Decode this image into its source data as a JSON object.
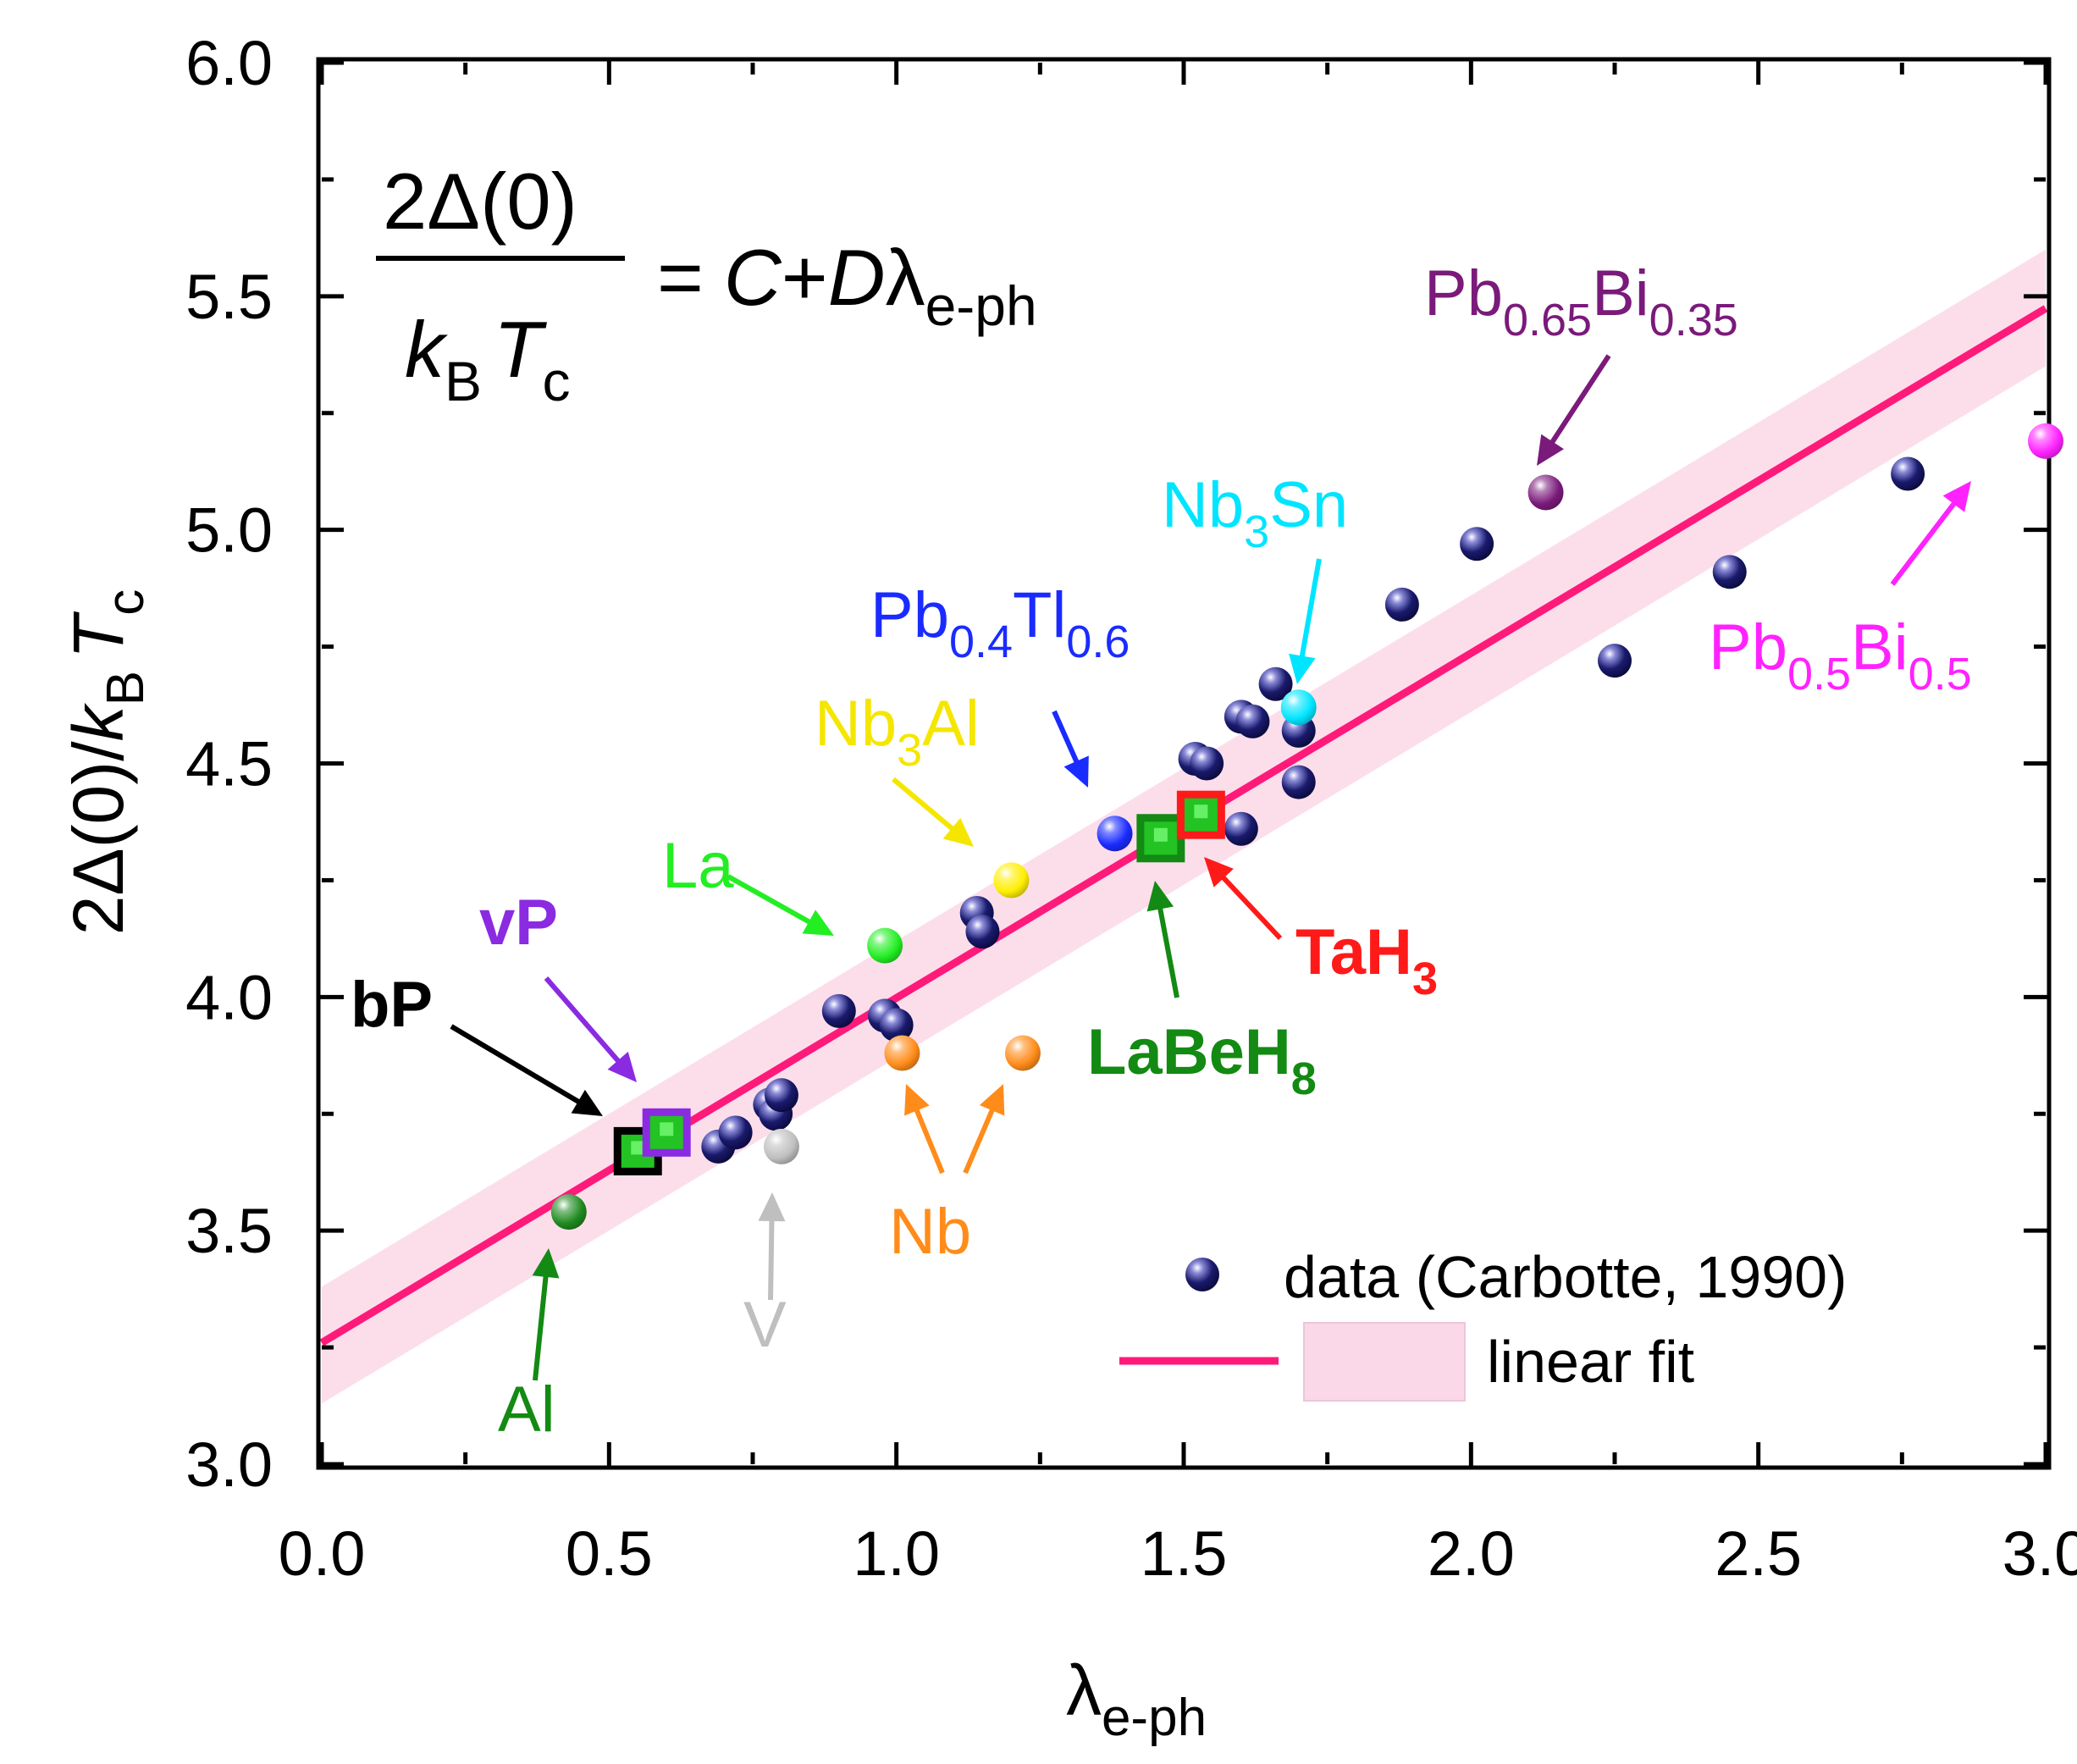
{
  "chart_data": {
    "type": "scatter",
    "xlabel": {
      "main": "λ",
      "sub": "e-ph"
    },
    "ylabel": {
      "p1": "2Δ(0)/",
      "k": "k",
      "kSub": "B",
      "T": "T",
      "tSub": "c"
    },
    "xlim": [
      0.0,
      3.0
    ],
    "ylim": [
      3.0,
      6.0
    ],
    "xticks": [
      "0.0",
      "0.5",
      "1.0",
      "1.5",
      "2.0",
      "2.5",
      "3.0"
    ],
    "yticks": [
      "3.0",
      "3.5",
      "4.0",
      "4.5",
      "5.0",
      "5.5",
      "6.0"
    ],
    "xtick_values": [
      0.0,
      0.5,
      1.0,
      1.5,
      2.0,
      2.5,
      3.0
    ],
    "ytick_values": [
      3.0,
      3.5,
      4.0,
      4.5,
      5.0,
      5.5,
      6.0
    ],
    "equation": {
      "num": "2Δ(0)",
      "den_k": "k",
      "den_kSub": "B",
      "den_T": "T",
      "den_tSub": "c",
      "eq": "=",
      "C": "C",
      "plus": "+",
      "D": "D",
      "lambda": "λ",
      "lambdaSub": "e-ph"
    },
    "fit": {
      "intercept": 3.26,
      "slope": 0.738,
      "band_low": [
        3.13,
        5.35
      ],
      "band_high": [
        3.38,
        5.6
      ],
      "x_range": [
        0.0,
        3.0
      ]
    },
    "data_series": {
      "name": "data (Carbotte, 1990)",
      "points": [
        [
          0.69,
          3.68
        ],
        [
          0.72,
          3.71
        ],
        [
          0.78,
          3.77
        ],
        [
          0.79,
          3.75
        ],
        [
          0.8,
          3.79
        ],
        [
          0.9,
          3.97
        ],
        [
          0.98,
          3.96
        ],
        [
          1.0,
          3.94
        ],
        [
          1.14,
          4.18
        ],
        [
          1.15,
          4.14
        ],
        [
          1.52,
          4.51
        ],
        [
          1.54,
          4.5
        ],
        [
          1.6,
          4.36
        ],
        [
          1.6,
          4.6
        ],
        [
          1.62,
          4.59
        ],
        [
          1.66,
          4.67
        ],
        [
          1.7,
          4.57
        ],
        [
          1.7,
          4.46
        ],
        [
          1.88,
          4.84
        ],
        [
          2.01,
          4.97
        ],
        [
          2.25,
          4.72
        ],
        [
          2.45,
          4.91
        ],
        [
          2.76,
          5.12
        ]
      ]
    },
    "legend": {
      "data": "data (Carbotte, 1990)",
      "fit": "linear fit",
      "position": "bottom-right"
    },
    "highlighted": [
      {
        "label": "Al",
        "x": 0.43,
        "y": 3.54,
        "color": "#1f8a1f"
      },
      {
        "label": "V",
        "x": 0.8,
        "y": 3.68,
        "color": "#bfbfbf"
      },
      {
        "label": "La",
        "x": 0.98,
        "y": 4.11,
        "color": "#22ee22"
      },
      {
        "label": "Nb",
        "x": 1.01,
        "y": 3.88,
        "color": "#ff8c1a"
      },
      {
        "label": "Nb",
        "x": 1.22,
        "y": 3.88,
        "color": "#ff8c1a"
      },
      {
        "label": "Nb3Al",
        "x": 1.2,
        "y": 4.25,
        "color": "#ffee00"
      },
      {
        "label": "Pb0.4Tl0.6",
        "x": 1.38,
        "y": 4.35,
        "color": "#1a2bff"
      },
      {
        "label": "Nb3Sn",
        "x": 1.7,
        "y": 4.62,
        "color": "#00e5ff"
      },
      {
        "label": "Pb0.65Bi0.35",
        "x": 2.13,
        "y": 5.08,
        "color": "#7a1a7a"
      },
      {
        "label": "Pb0.5Bi0.5",
        "x": 3.0,
        "y": 5.19,
        "color": "#ff22ff"
      }
    ],
    "squares": [
      {
        "label": "bP",
        "x": 0.55,
        "y": 3.67,
        "edge": "#000000"
      },
      {
        "label": "vP",
        "x": 0.6,
        "y": 3.71,
        "edge": "#8a2be2"
      },
      {
        "label": "LaBeH8",
        "x": 1.46,
        "y": 4.34,
        "edge": "#138a13"
      },
      {
        "label": "TaH3",
        "x": 1.53,
        "y": 4.39,
        "edge": "#ff1a1a"
      }
    ],
    "annotations": {
      "Al": {
        "text": "Al",
        "color": "#138a13"
      },
      "V": {
        "text": "V",
        "color": "#bfbfbf"
      },
      "La": {
        "text": "La",
        "color": "#22ee22"
      },
      "Nb": {
        "text": "Nb",
        "color": "#ff8c1a"
      },
      "Nb3Al": {
        "a": "Nb",
        "s": "3",
        "b": "Al",
        "color": "#f5e600"
      },
      "PbTl": {
        "a": "Pb",
        "s1": "0.4",
        "b": "Tl",
        "s2": "0.6",
        "color": "#1a2bff"
      },
      "Nb3Sn": {
        "a": "Nb",
        "s": "3",
        "b": "Sn",
        "color": "#00e5ff"
      },
      "PbBi65": {
        "a": "Pb",
        "s1": "0.65",
        "b": "Bi",
        "s2": "0.35",
        "color": "#7a1a7a"
      },
      "PbBi5": {
        "a": "Pb",
        "s1": "0.5",
        "b": "Bi",
        "s2": "0.5",
        "color": "#ff22ff"
      },
      "bP": {
        "text": "bP",
        "color": "#000000"
      },
      "vP": {
        "text": "vP",
        "color": "#8a2be2"
      },
      "TaH3": {
        "a": "TaH",
        "s": "3",
        "color": "#ff1a1a"
      },
      "LaBeH8": {
        "a": "LaBeH",
        "s": "8",
        "color": "#138a13"
      }
    }
  }
}
